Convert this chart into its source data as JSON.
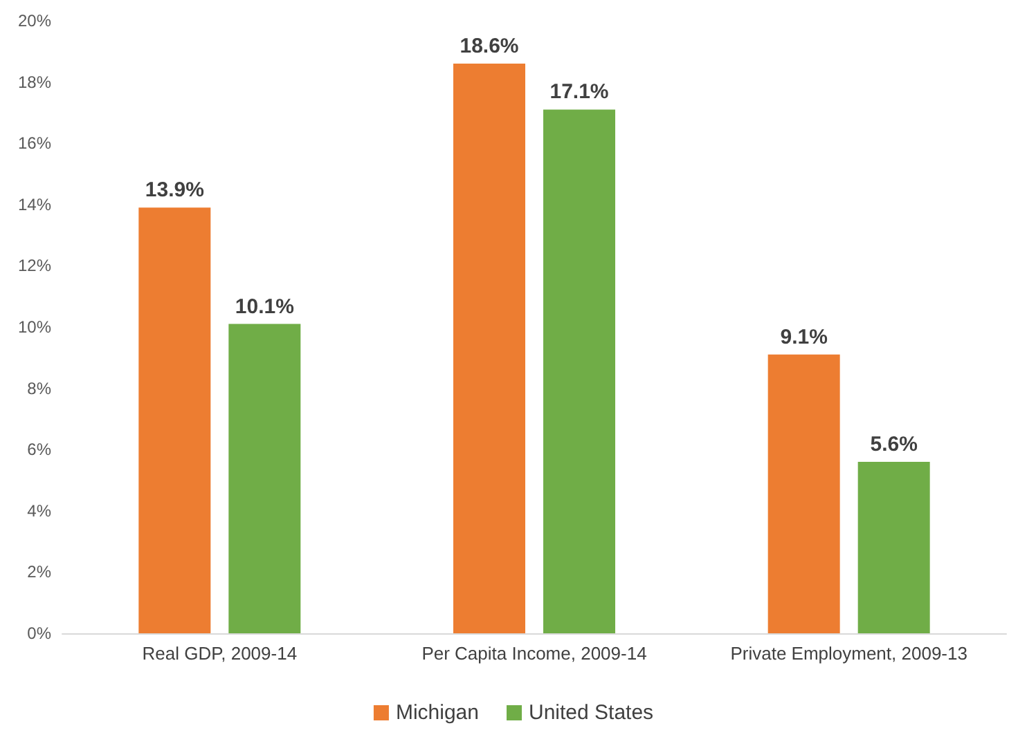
{
  "chart_data": {
    "type": "bar",
    "categories": [
      "Real GDP, 2009-14",
      "Per Capita Income, 2009-14",
      "Private Employment, 2009-13"
    ],
    "series": [
      {
        "name": "Michigan",
        "color": "#ed7d31",
        "values": [
          13.9,
          18.6,
          9.1
        ],
        "value_labels": [
          "13.9%",
          "18.6%",
          "9.1%"
        ]
      },
      {
        "name": "United States",
        "color": "#70ad47",
        "values": [
          10.1,
          17.1,
          5.6
        ],
        "value_labels": [
          "10.1%",
          "17.1%",
          "5.6%"
        ]
      }
    ],
    "ylim": [
      0,
      20
    ],
    "yticks": [
      {
        "value": 0,
        "label": "0%"
      },
      {
        "value": 2,
        "label": "2%"
      },
      {
        "value": 4,
        "label": "4%"
      },
      {
        "value": 6,
        "label": "6%"
      },
      {
        "value": 8,
        "label": "8%"
      },
      {
        "value": 10,
        "label": "10%"
      },
      {
        "value": 12,
        "label": "12%"
      },
      {
        "value": 14,
        "label": "14%"
      },
      {
        "value": 16,
        "label": "16%"
      },
      {
        "value": 18,
        "label": "18%"
      },
      {
        "value": 20,
        "label": "20%"
      }
    ],
    "grid": false,
    "legend": "bottom"
  }
}
